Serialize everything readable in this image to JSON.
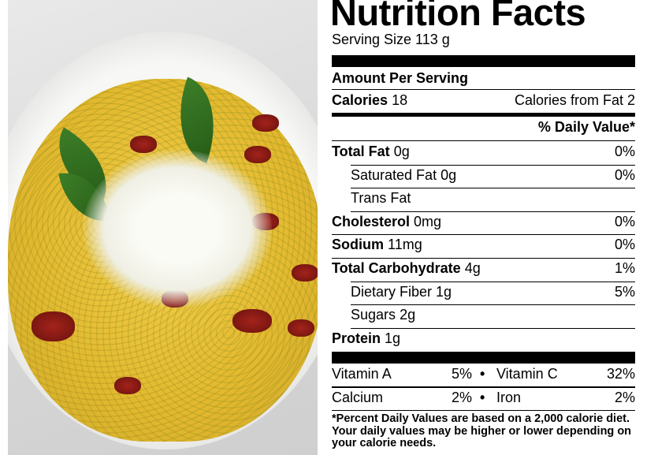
{
  "photo": {
    "description_icon": "food-photo"
  },
  "label": {
    "title": "Nutrition Facts",
    "serving_size": "Serving Size  113 g",
    "amount_per_serving": "Amount Per Serving",
    "calories_label": "Calories",
    "calories_value": "18",
    "calories_from_fat": "Calories from Fat 2",
    "daily_value_header": "% Daily Value*",
    "nutrients": [
      {
        "name": "Total Fat",
        "amount": "0g",
        "dv": "0%",
        "bold": true,
        "indent": false
      },
      {
        "name": "Saturated Fat",
        "amount": "0g",
        "dv": "0%",
        "bold": false,
        "indent": true
      },
      {
        "name": "Trans Fat",
        "amount": "",
        "dv": "",
        "bold": false,
        "indent": true
      },
      {
        "name": "Cholesterol",
        "amount": "0mg",
        "dv": "0%",
        "bold": true,
        "indent": false
      },
      {
        "name": "Sodium",
        "amount": "11mg",
        "dv": "0%",
        "bold": true,
        "indent": false
      },
      {
        "name": "Total Carbohydrate",
        "amount": "4g",
        "dv": "1%",
        "bold": true,
        "indent": false
      },
      {
        "name": "Dietary Fiber",
        "amount": "1g",
        "dv": "5%",
        "bold": false,
        "indent": true
      },
      {
        "name": "Sugars",
        "amount": "2g",
        "dv": "",
        "bold": false,
        "indent": true
      },
      {
        "name": "Protein",
        "amount": "1g",
        "dv": "",
        "bold": true,
        "indent": false
      }
    ],
    "vitamins": [
      {
        "left_name": "Vitamin A",
        "left_value": "5%",
        "right_name": "Vitamin C",
        "right_value": "32%"
      },
      {
        "left_name": "Calcium",
        "left_value": "2%",
        "right_name": "Iron",
        "right_value": "2%"
      }
    ],
    "bullet": "•",
    "footnote": "*Percent Daily Values are based on a 2,000 calorie diet. Your daily values may be higher or lower depending on your calorie needs."
  }
}
